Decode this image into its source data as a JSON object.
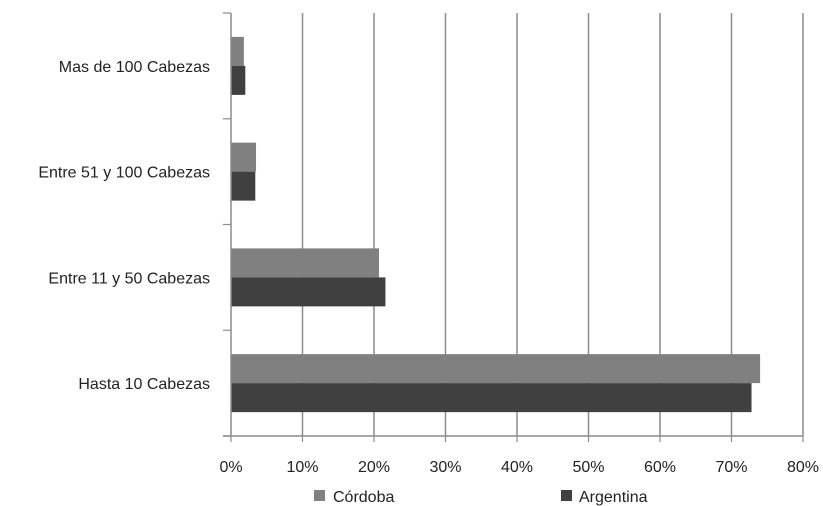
{
  "chart_data": {
    "type": "bar",
    "orientation": "horizontal",
    "categories": [
      "Hasta 10 Cabezas",
      "Entre 11 y 50 Cabezas",
      "Entre 51 y 100 Cabezas",
      "Mas de 100 Cabezas"
    ],
    "series": [
      {
        "name": "Córdoba",
        "color": "#808080",
        "values": [
          74,
          20.7,
          3.5,
          1.8
        ]
      },
      {
        "name": "Argentina",
        "color": "#404040",
        "values": [
          72.8,
          21.6,
          3.4,
          2.0
        ]
      }
    ],
    "xlim": [
      0,
      80
    ],
    "xticks": [
      0,
      10,
      20,
      30,
      40,
      50,
      60,
      70,
      80
    ],
    "tick_labels": [
      "0%",
      "10%",
      "20%",
      "30%",
      "40%",
      "50%",
      "60%",
      "70%",
      "80%"
    ],
    "grid": "vertical",
    "legend_position": "bottom",
    "title": "",
    "xlabel": "",
    "ylabel": ""
  }
}
